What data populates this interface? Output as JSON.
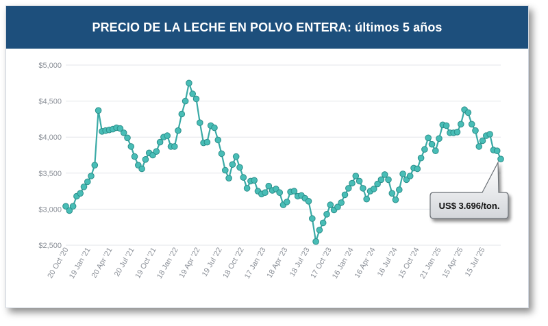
{
  "header": {
    "title": "PRECIO DE LA LECHE EN POLVO ENTERA: últimos 5 años"
  },
  "callout": {
    "label": "US$ 3.696/ton."
  },
  "colors": {
    "header_bg": "#1d4f7c",
    "line": "#3aaaa6",
    "marker_fill": "#48bdb6",
    "marker_stroke": "#2c8f8b",
    "grid": "#e3e6ea"
  },
  "chart_data": {
    "type": "line",
    "title": "PRECIO DE LA LECHE EN POLVO ENTERA: últimos 5 años",
    "ylim": [
      2500,
      5000
    ],
    "y_ticks": [
      2500,
      3000,
      3500,
      4000,
      4500,
      5000
    ],
    "y_tick_labels": [
      "$2,500",
      "$3,000",
      "$3,500",
      "$4,000",
      "$4,500",
      "$5,000"
    ],
    "x_tick_labels": [
      "20 Oct '20",
      "19 Jan '21",
      "20 Apr '21",
      "20 Jul '21",
      "19 Oct '21",
      "18 Jan '22",
      "19 Apr '22",
      "19 Jul '22",
      "18 Oct '22",
      "17 Jan '23",
      "18 Apr '23",
      "18 Jul '23",
      "17 Oct '23",
      "16 Jan '24",
      "16 Apr '24",
      "16 Jul '24",
      "15 Oct '24",
      "21 Jan '25",
      "15 Apr '25",
      "15 Jul '25"
    ],
    "series": [
      {
        "values": [
          3040,
          2980,
          3040,
          3180,
          3220,
          3310,
          3380,
          3460,
          3610,
          4370,
          4080,
          4090,
          4100,
          4110,
          4130,
          4120,
          4060,
          3990,
          3870,
          3730,
          3610,
          3560,
          3690,
          3780,
          3750,
          3800,
          3930,
          4000,
          4020,
          3870,
          3870,
          4090,
          4320,
          4500,
          4750,
          4600,
          4530,
          4200,
          3920,
          3930,
          4160,
          4130,
          3960,
          3770,
          3540,
          3430,
          3620,
          3730,
          3580,
          3440,
          3290,
          3390,
          3400,
          3250,
          3210,
          3230,
          3320,
          3260,
          3280,
          3230,
          3060,
          3100,
          3240,
          3250,
          3180,
          3190,
          3150,
          3110,
          2870,
          2550,
          2710,
          2810,
          2930,
          3060,
          2990,
          3030,
          3090,
          3200,
          3290,
          3360,
          3460,
          3390,
          3290,
          3140,
          3250,
          3280,
          3350,
          3410,
          3480,
          3410,
          3220,
          3130,
          3270,
          3490,
          3410,
          3460,
          3570,
          3560,
          3710,
          3830,
          3990,
          3900,
          3810,
          3980,
          4170,
          4160,
          4060,
          4060,
          4070,
          4180,
          4380,
          4340,
          4180,
          4090,
          3870,
          3950,
          4020,
          4040,
          3820,
          3810,
          3696
        ]
      }
    ],
    "grid": true,
    "legend": "none"
  }
}
